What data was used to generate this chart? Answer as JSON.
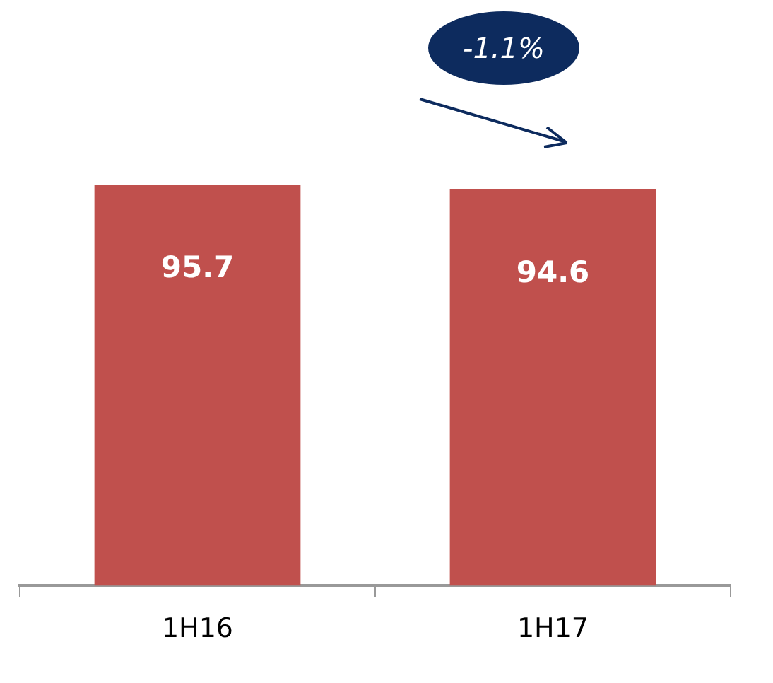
{
  "chart_data": {
    "type": "bar",
    "categories": [
      "1H16",
      "1H17"
    ],
    "values": [
      95.7,
      94.6
    ],
    "color": "#c0504d",
    "data_labels": true,
    "annotations": [
      "-1.1%"
    ]
  }
}
